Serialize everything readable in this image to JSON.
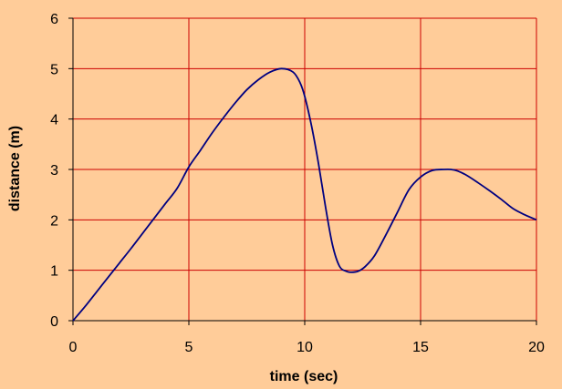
{
  "chart_data": {
    "type": "line",
    "title": "",
    "xlabel": "time (sec)",
    "ylabel": "distance (m)",
    "xlim": [
      0,
      20
    ],
    "ylim": [
      0,
      6
    ],
    "xticks": [
      0,
      5,
      10,
      15,
      20
    ],
    "yticks": [
      0,
      1,
      2,
      3,
      4,
      5,
      6
    ],
    "grid": true,
    "legend": "none",
    "colors": {
      "background": "#FFCC99",
      "grid": "#CC0000",
      "line": "#000080",
      "axis": "#000000"
    },
    "series": [
      {
        "x": [
          0,
          0.5,
          1,
          1.5,
          2,
          2.5,
          3,
          3.5,
          4,
          4.5,
          5,
          5.5,
          6,
          6.5,
          7,
          7.5,
          8,
          8.5,
          9,
          9.5,
          9.8,
          10,
          10.3,
          10.6,
          10.9,
          11.2,
          11.5,
          11.8,
          12,
          12.3,
          12.6,
          13,
          13.5,
          14,
          14.5,
          15,
          15.5,
          16,
          16.3,
          16.6,
          17,
          17.5,
          18,
          18.5,
          19,
          19.5,
          20
        ],
        "y": [
          0,
          0.27,
          0.56,
          0.85,
          1.14,
          1.43,
          1.73,
          2.03,
          2.33,
          2.63,
          3.05,
          3.38,
          3.72,
          4.03,
          4.32,
          4.58,
          4.78,
          4.93,
          5.0,
          4.93,
          4.72,
          4.45,
          3.85,
          3.1,
          2.25,
          1.5,
          1.08,
          0.98,
          0.96,
          0.98,
          1.07,
          1.28,
          1.7,
          2.15,
          2.6,
          2.85,
          2.98,
          3.0,
          3.0,
          2.97,
          2.88,
          2.73,
          2.57,
          2.4,
          2.22,
          2.1,
          2.0
        ]
      }
    ]
  }
}
